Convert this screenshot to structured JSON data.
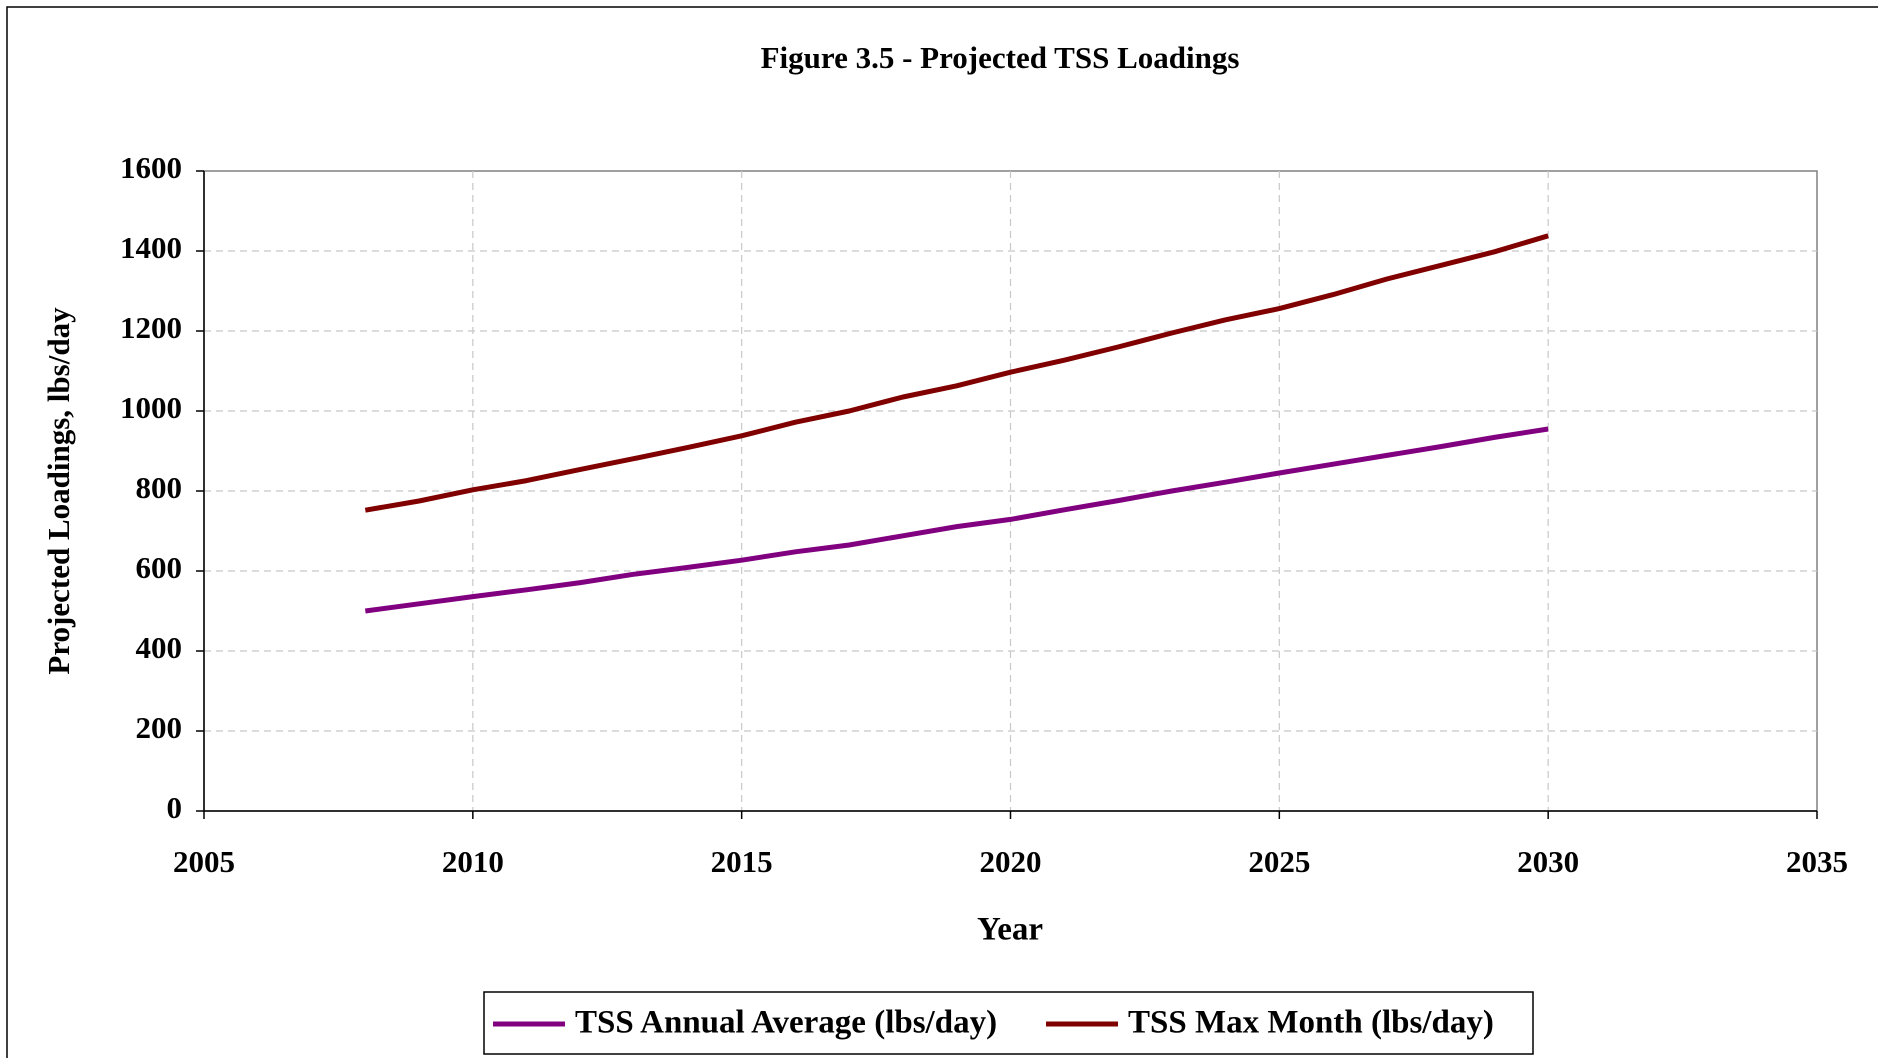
{
  "chart_data": {
    "type": "line",
    "title": "Figure 3.5 - Projected TSS Loadings",
    "xlabel": "Year",
    "ylabel": "Projected Loadings, lbs/day",
    "x": [
      2008,
      2009,
      2010,
      2011,
      2012,
      2013,
      2014,
      2015,
      2016,
      2017,
      2018,
      2019,
      2020,
      2021,
      2022,
      2023,
      2024,
      2025,
      2026,
      2027,
      2028,
      2029,
      2030
    ],
    "series": [
      {
        "name": "TSS Annual Average (lbs/day)",
        "color": "#800080",
        "values": [
          500,
          518,
          536,
          553,
          571,
          592,
          609,
          627,
          648,
          665,
          688,
          711,
          729,
          753,
          776,
          800,
          822,
          845,
          867,
          889,
          911,
          934,
          955
        ]
      },
      {
        "name": "TSS Max Month (lbs/day)",
        "color": "#800000",
        "values": [
          752,
          775,
          803,
          826,
          854,
          881,
          909,
          938,
          972,
          1000,
          1035,
          1063,
          1097,
          1127,
          1160,
          1195,
          1228,
          1256,
          1291,
          1330,
          1364,
          1398,
          1438
        ]
      }
    ],
    "xlim": [
      2005,
      2035
    ],
    "xticks": [
      2005,
      2010,
      2015,
      2020,
      2025,
      2030,
      2035
    ],
    "ylim": [
      0,
      1600
    ],
    "yticks": [
      0,
      200,
      400,
      600,
      800,
      1000,
      1200,
      1400,
      1600
    ],
    "grid": true,
    "legend": "bottom"
  }
}
